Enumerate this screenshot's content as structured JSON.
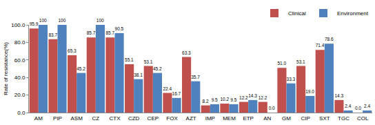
{
  "chart_data": {
    "type": "bar",
    "y_label": "Rate of resistance(%)",
    "categories": [
      "AM",
      "PIP",
      "ASM",
      "CZ",
      "CTX",
      "CZD",
      "CEP",
      "FOX",
      "AZT",
      "IMP",
      "MEM",
      "ETP",
      "AN",
      "GM",
      "CIP",
      "SXT",
      "TGC",
      "COL"
    ],
    "series": [
      {
        "name": "Clinical",
        "color": "#C0504D",
        "values": [
          95.9,
          83.7,
          65.3,
          85.7,
          85.7,
          55.1,
          53.1,
          22.4,
          63.3,
          8.2,
          10.2,
          12.2,
          12.2,
          51.0,
          53.1,
          71.4,
          14.3,
          0.0
        ],
        "value_labels": [
          "95.9",
          "83.7",
          "65.3",
          "85.7",
          "85.7",
          "55.1",
          "53.1",
          "22.4",
          "63.3",
          "8.2",
          "10.2",
          "12.2",
          "12.2",
          "51.0",
          "53.1",
          "71.4",
          "14.3",
          "0.0"
        ]
      },
      {
        "name": "Environment",
        "color": "#4F81BD",
        "values": [
          100,
          100,
          45.2,
          100,
          90.5,
          38.1,
          45.2,
          16.7,
          35.7,
          9.5,
          9.5,
          14.3,
          0.0,
          33.3,
          19.0,
          78.6,
          2.4,
          2.4
        ],
        "value_labels": [
          "100",
          "100",
          "45.2",
          "100",
          "90.5",
          "38.1",
          "45.2",
          "16.7",
          "35.7",
          "9.5",
          "9.5",
          "14.3",
          "0.0",
          "33.3",
          "19.0",
          "78.6",
          "2.4",
          "2.4"
        ]
      }
    ],
    "ylim": [
      0,
      100
    ],
    "yticks": [
      {
        "value": 0,
        "label": "0.0"
      },
      {
        "value": 20,
        "label": "20.0"
      },
      {
        "value": 40,
        "label": "40.0"
      },
      {
        "value": 60,
        "label": "60.0"
      },
      {
        "value": 80,
        "label": "80.0"
      },
      {
        "value": 100,
        "label": "100.0"
      }
    ],
    "grid": false,
    "legend": "top",
    "data_labels": true
  }
}
